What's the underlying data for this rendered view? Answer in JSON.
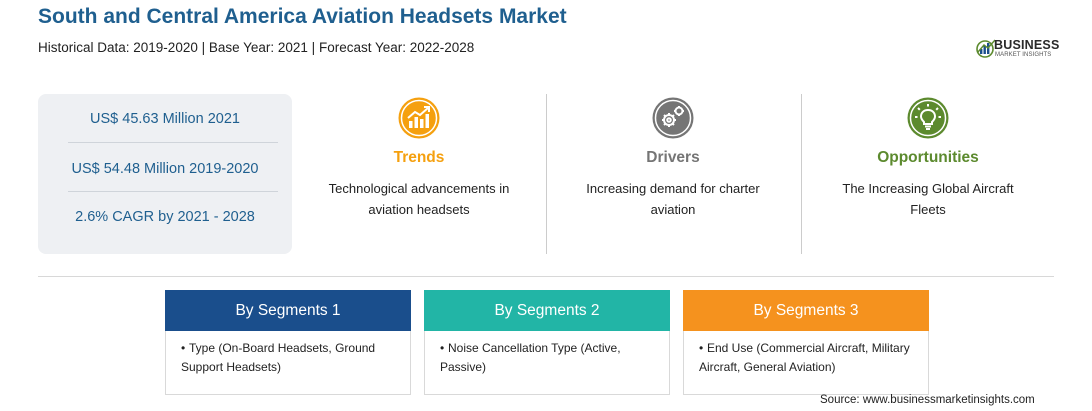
{
  "header": {
    "title": "South and Central America Aviation Headsets Market",
    "subtitle": "Historical Data: 2019-2020 | Base Year: 2021 | Forecast Year: 2022-2028"
  },
  "logo": {
    "line1": "BUSINESS",
    "line2": "MARKET INSIGHTS"
  },
  "stats": [
    "US$ 45.63 Million 2021",
    "US$ 54.48 Million 2019-2020",
    "2.6% CAGR by 2021 - 2028"
  ],
  "columns": [
    {
      "heading": "Trends",
      "text": "Technological advancements in aviation headsets",
      "color": "#f5a00f",
      "icon": "trend-chart-icon"
    },
    {
      "heading": "Drivers",
      "text": "Increasing demand for charter aviation",
      "color": "#757575",
      "icon": "gears-icon"
    },
    {
      "heading": "Opportunities",
      "text": "The Increasing Global Aircraft Fleets",
      "color": "#5c8a2e",
      "icon": "lightbulb-icon"
    }
  ],
  "segments": [
    {
      "title": "By Segments 1",
      "bullet": "Type (On-Board Headsets, Ground Support Headsets)",
      "color": "#1a4e8c"
    },
    {
      "title": "By Segments 2",
      "bullet": "Noise Cancellation Type (Active, Passive)",
      "color": "#22b5a6"
    },
    {
      "title": "By Segments 3",
      "bullet": "End Use (Commercial Aircraft, Military Aircraft, General Aviation)",
      "color": "#f5921e"
    }
  ],
  "source": "Source: www.businessmarketinsights.com"
}
